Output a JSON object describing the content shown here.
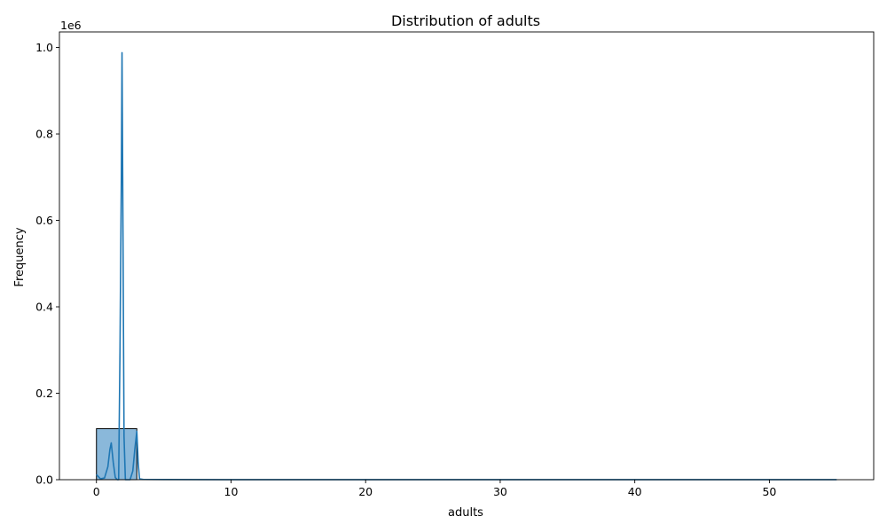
{
  "chart_data": {
    "type": "bar",
    "title": "Distribution of adults",
    "xlabel": "adults",
    "ylabel": "Frequency",
    "y_offset_text": "1e6",
    "xlim": [
      -2.75,
      57.75
    ],
    "ylim": [
      0,
      1036000
    ],
    "xticks": [
      0,
      10,
      20,
      30,
      40,
      50
    ],
    "xtick_labels": [
      "0",
      "10",
      "20",
      "30",
      "40",
      "50"
    ],
    "yticks": [
      0,
      200000,
      400000,
      600000,
      800000,
      1000000
    ],
    "ytick_labels": [
      "0.0",
      "0.2",
      "0.4",
      "0.6",
      "0.8",
      "1.0"
    ],
    "grid": false,
    "colors": {
      "bar_fill": "#8ab8da",
      "bar_edge": "#000000",
      "kde_line": "#1f77b4"
    },
    "histogram": {
      "bins": [
        {
          "start": 0.0,
          "end": 3.0,
          "count": 118000
        }
      ]
    },
    "kde": {
      "x": [
        0.0,
        0.3,
        0.6,
        0.85,
        1.0,
        1.1,
        1.25,
        1.4,
        1.55,
        1.65,
        1.75,
        1.85,
        1.9,
        1.95,
        2.05,
        2.15,
        2.3,
        2.5,
        2.7,
        2.85,
        3.0,
        3.1,
        3.2,
        3.5,
        5.0,
        10.0,
        20.0,
        30.0,
        40.0,
        50.0,
        55.0
      ],
      "y": [
        12000,
        2000,
        4000,
        30000,
        70000,
        85000,
        40000,
        5000,
        0,
        0,
        300000,
        700000,
        988000,
        700000,
        100000,
        0,
        0,
        0,
        20000,
        70000,
        112000,
        40000,
        2000,
        500,
        300,
        200,
        200,
        200,
        200,
        200,
        100
      ]
    }
  }
}
